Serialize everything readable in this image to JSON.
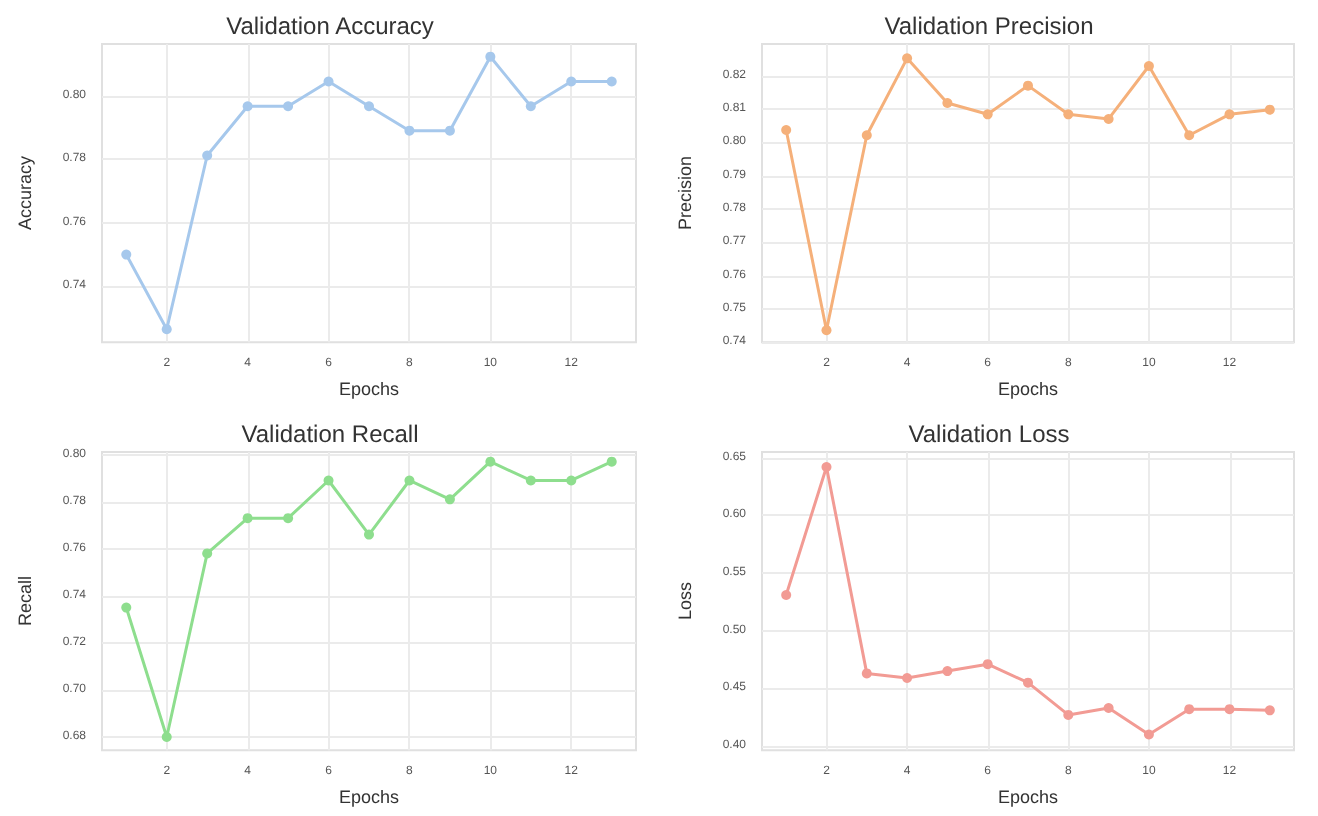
{
  "chart_data": [
    {
      "type": "line",
      "title": "Validation Accuracy",
      "xlabel": "Epochs",
      "ylabel": "Accuracy",
      "x": [
        1,
        2,
        3,
        4,
        5,
        6,
        7,
        8,
        9,
        10,
        11,
        12,
        13
      ],
      "series": [
        {
          "color": "#a6c8ec",
          "values": [
            0.75,
            0.7265,
            0.7812,
            0.7967,
            0.7967,
            0.8045,
            0.7967,
            0.789,
            0.789,
            0.8123,
            0.7967,
            0.8045,
            0.8045
          ]
        }
      ],
      "xlim": [
        0.4,
        13.6
      ],
      "xticks": [
        2,
        4,
        6,
        8,
        10,
        12
      ],
      "ylim": [
        0.7224,
        0.8163
      ],
      "yticks": [
        0.74,
        0.76,
        0.78,
        {
          "value": 0.8,
          "label": "0.80"
        }
      ],
      "grid": true,
      "marker": "circle"
    },
    {
      "type": "line",
      "title": "Validation Precision",
      "xlabel": "Epochs",
      "ylabel": "Precision",
      "x": [
        1,
        2,
        3,
        4,
        5,
        6,
        7,
        8,
        9,
        10,
        11,
        12,
        13
      ],
      "series": [
        {
          "color": "#f5b07a",
          "values": [
            0.8037,
            0.7436,
            0.8021,
            0.8252,
            0.8118,
            0.8084,
            0.817,
            0.8084,
            0.807,
            0.8229,
            0.8021,
            0.8084,
            0.8098
          ]
        }
      ],
      "xlim": [
        0.4,
        13.6
      ],
      "xticks": [
        2,
        4,
        6,
        8,
        10,
        12
      ],
      "ylim": [
        0.74,
        0.8295
      ],
      "yticks": [
        0.74,
        0.75,
        0.76,
        0.77,
        0.78,
        0.79,
        {
          "value": 0.8,
          "label": "0.80"
        },
        0.81,
        0.82
      ],
      "grid": true,
      "marker": "circle"
    },
    {
      "type": "line",
      "title": "Validation Recall",
      "xlabel": "Epochs",
      "ylabel": "Recall",
      "x": [
        1,
        2,
        3,
        4,
        5,
        6,
        7,
        8,
        9,
        10,
        11,
        12,
        13
      ],
      "series": [
        {
          "color": "#8ede8e",
          "values": [
            0.735,
            0.68,
            0.758,
            0.773,
            0.773,
            0.789,
            0.766,
            0.789,
            0.781,
            0.797,
            0.789,
            0.789,
            0.797
          ]
        }
      ],
      "xlim": [
        0.4,
        13.6
      ],
      "xticks": [
        2,
        4,
        6,
        8,
        10,
        12
      ],
      "ylim": [
        0.6744,
        0.8011
      ],
      "yticks": [
        0.68,
        {
          "value": 0.7,
          "label": "0.70"
        },
        0.72,
        0.74,
        0.76,
        0.78,
        {
          "value": 0.8,
          "label": "0.80"
        }
      ],
      "grid": true,
      "marker": "circle"
    },
    {
      "type": "line",
      "title": "Validation Loss",
      "xlabel": "Epochs",
      "ylabel": "Loss",
      "x": [
        1,
        2,
        3,
        4,
        5,
        6,
        7,
        8,
        9,
        10,
        11,
        12,
        13
      ],
      "series": [
        {
          "color": "#f29b94",
          "values": [
            0.531,
            0.642,
            0.463,
            0.459,
            0.465,
            0.471,
            0.455,
            0.427,
            0.433,
            0.41,
            0.432,
            0.432,
            0.431
          ]
        }
      ],
      "xlim": [
        0.4,
        13.6
      ],
      "xticks": [
        2,
        4,
        6,
        8,
        10,
        12
      ],
      "ylim": [
        0.3964,
        0.655
      ],
      "yticks": [
        {
          "value": 0.4,
          "label": "0.40"
        },
        0.45,
        {
          "value": 0.5,
          "label": "0.50"
        },
        0.55,
        {
          "value": 0.6,
          "label": "0.60"
        },
        0.65
      ],
      "grid": true,
      "marker": "circle"
    }
  ]
}
